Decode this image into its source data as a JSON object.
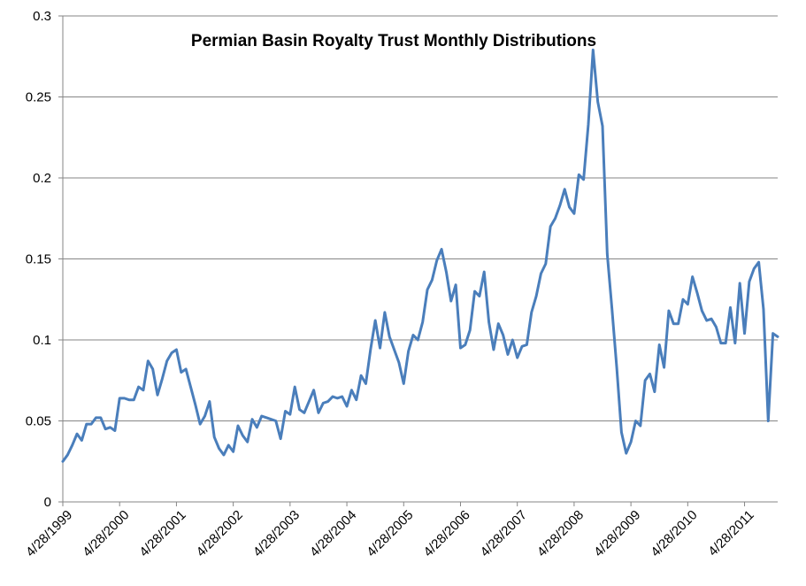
{
  "chart_data": {
    "type": "line",
    "title": "Permian Basin Royalty Trust Monthly Distributions",
    "xlabel": "",
    "ylabel": "",
    "ylim": [
      0,
      0.3
    ],
    "yticks": [
      "0",
      "0.05",
      "0.1",
      "0.15",
      "0.2",
      "0.25",
      "0.3"
    ],
    "xticks": [
      "4/28/1999",
      "4/28/2000",
      "4/28/2001",
      "4/28/2002",
      "4/28/2003",
      "4/28/2004",
      "4/28/2005",
      "4/28/2006",
      "4/28/2007",
      "4/28/2008",
      "4/28/2009",
      "4/28/2010",
      "4/28/2011"
    ],
    "grid": "horizontal",
    "legend": "none",
    "series_color": "#4a7ebb",
    "series": [
      {
        "values": [
          0.025,
          0.029,
          0.035,
          0.042,
          0.038,
          0.048,
          0.048,
          0.052,
          0.052,
          0.045,
          0.046,
          0.044,
          0.064,
          0.064,
          0.063,
          0.063,
          0.071,
          0.069,
          0.087,
          0.082,
          0.066,
          0.076,
          0.087,
          0.092,
          0.094,
          0.08,
          0.082,
          0.071,
          0.06,
          0.048,
          0.053,
          0.062,
          0.04,
          0.033,
          0.029,
          0.035,
          0.031,
          0.047,
          0.041,
          0.037,
          0.051,
          0.046,
          0.053,
          0.052,
          0.051,
          0.05,
          0.039,
          0.056,
          0.054,
          0.071,
          0.057,
          0.055,
          0.062,
          0.069,
          0.055,
          0.061,
          0.062,
          0.065,
          0.064,
          0.065,
          0.059,
          0.069,
          0.063,
          0.078,
          0.073,
          0.094,
          0.112,
          0.095,
          0.117,
          0.102,
          0.094,
          0.086,
          0.073,
          0.093,
          0.103,
          0.1,
          0.111,
          0.131,
          0.137,
          0.149,
          0.156,
          0.142,
          0.124,
          0.134,
          0.095,
          0.097,
          0.106,
          0.13,
          0.127,
          0.142,
          0.111,
          0.094,
          0.11,
          0.103,
          0.091,
          0.1,
          0.089,
          0.096,
          0.097,
          0.117,
          0.127,
          0.141,
          0.147,
          0.17,
          0.175,
          0.183,
          0.193,
          0.182,
          0.178,
          0.202,
          0.199,
          0.233,
          0.279,
          0.247,
          0.232,
          0.153,
          0.119,
          0.083,
          0.043,
          0.03,
          0.037,
          0.05,
          0.047,
          0.075,
          0.079,
          0.068,
          0.097,
          0.083,
          0.118,
          0.11,
          0.11,
          0.125,
          0.122,
          0.139,
          0.129,
          0.118,
          0.112,
          0.113,
          0.108,
          0.098,
          0.098,
          0.12,
          0.098,
          0.135,
          0.104,
          0.136,
          0.144,
          0.148,
          0.119,
          0.05,
          0.104,
          0.102
        ]
      }
    ]
  }
}
